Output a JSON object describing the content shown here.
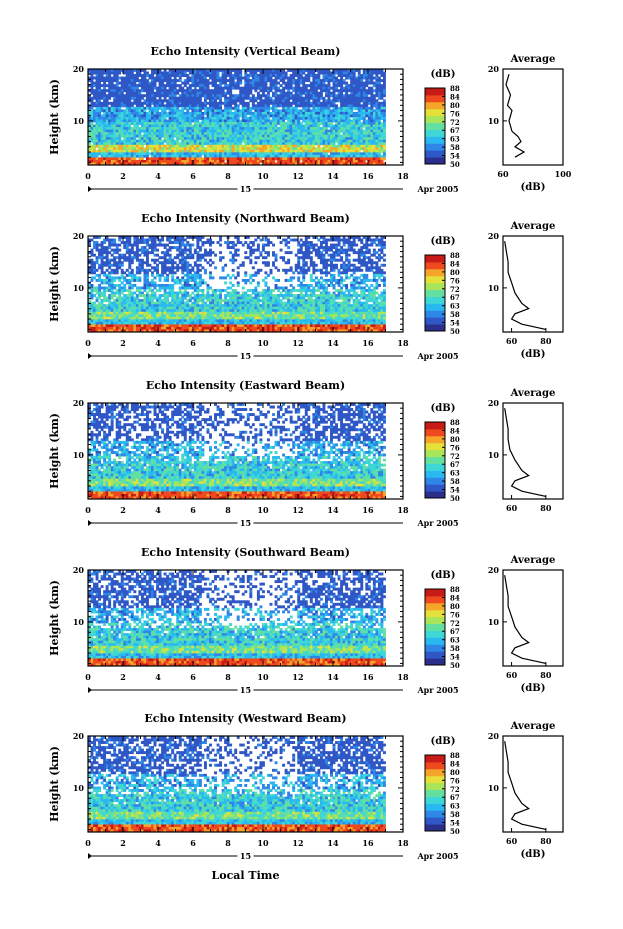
{
  "figure": {
    "xlabel": "Local Time",
    "date_label": "Apr 2005",
    "day_label": "15",
    "colorbar": {
      "unit": "(dB)",
      "ticks": [
        "50",
        "54",
        "58",
        "63",
        "67",
        "72",
        "76",
        "80",
        "84",
        "88"
      ]
    }
  },
  "colors": {
    "background_noise": "#2a2f8c",
    "scale": [
      "#2b2e8a",
      "#2f57c6",
      "#2e86e6",
      "#2ab8f0",
      "#3fd6d6",
      "#63e0a0",
      "#a8e55a",
      "#e6e03a",
      "#f6a52b",
      "#ef4a1f",
      "#c81a16"
    ],
    "empty": "#ffffff"
  },
  "chart_data": [
    {
      "type": "heatmap",
      "title": "Echo Intensity (Vertical Beam)",
      "xlabel": "",
      "ylabel": "Height (km)",
      "xlim": [
        0,
        18
      ],
      "ylim": [
        1.5,
        20
      ],
      "xticks": [
        0,
        2,
        4,
        6,
        8,
        10,
        12,
        14,
        16,
        18
      ],
      "yticks": [
        10,
        20
      ],
      "value_range_dB": [
        50,
        88
      ],
      "average_profile": {
        "title": "Average",
        "xlabel": "(dB)",
        "xlim": [
          60,
          100
        ],
        "xticks": [
          60,
          100
        ],
        "height_km": [
          19,
          17,
          15,
          13,
          12,
          10,
          8,
          7,
          6,
          5,
          4,
          3
        ],
        "dB": [
          64,
          62,
          65,
          63,
          66,
          64,
          66,
          70,
          72,
          68,
          74,
          68
        ]
      }
    },
    {
      "type": "heatmap",
      "title": "Echo Intensity (Northward Beam)",
      "xlabel": "",
      "ylabel": "Height (km)",
      "xlim": [
        0,
        18
      ],
      "ylim": [
        1.5,
        20
      ],
      "xticks": [
        0,
        2,
        4,
        6,
        8,
        10,
        12,
        14,
        16,
        18
      ],
      "yticks": [
        10,
        20
      ],
      "value_range_dB": [
        50,
        88
      ],
      "average_profile": {
        "title": "Average",
        "xlabel": "(dB)",
        "xlim": [
          55,
          90
        ],
        "xticks": [
          60,
          80
        ],
        "height_km": [
          19,
          17,
          15,
          13,
          11,
          9,
          7,
          6,
          5,
          4,
          3,
          2
        ],
        "dB": [
          56,
          57,
          58,
          58,
          60,
          62,
          66,
          70,
          62,
          60,
          66,
          80
        ]
      }
    },
    {
      "type": "heatmap",
      "title": "Echo Intensity (Eastward Beam)",
      "xlabel": "",
      "ylabel": "Height (km)",
      "xlim": [
        0,
        18
      ],
      "ylim": [
        1.5,
        20
      ],
      "xticks": [
        0,
        2,
        4,
        6,
        8,
        10,
        12,
        14,
        16,
        18
      ],
      "yticks": [
        10,
        20
      ],
      "value_range_dB": [
        50,
        88
      ],
      "average_profile": {
        "title": "Average",
        "xlabel": "",
        "xlim": [
          55,
          90
        ],
        "xticks": [
          60,
          80
        ],
        "height_km": [
          19,
          17,
          15,
          13,
          11,
          9,
          7,
          6,
          5,
          4,
          3,
          2
        ],
        "dB": [
          56,
          57,
          58,
          58,
          59,
          62,
          66,
          70,
          62,
          60,
          66,
          80
        ]
      }
    },
    {
      "type": "heatmap",
      "title": "Echo Intensity (Southward Beam)",
      "xlabel": "",
      "ylabel": "Height (km)",
      "xlim": [
        0,
        18
      ],
      "ylim": [
        1.5,
        20
      ],
      "xticks": [
        0,
        2,
        4,
        6,
        8,
        10,
        12,
        14,
        16,
        18
      ],
      "yticks": [
        10,
        20
      ],
      "value_range_dB": [
        50,
        88
      ],
      "average_profile": {
        "title": "Average",
        "xlabel": "(dB)",
        "xlim": [
          55,
          90
        ],
        "xticks": [
          60,
          80
        ],
        "height_km": [
          19,
          17,
          15,
          13,
          11,
          9,
          7,
          6,
          5,
          4,
          3,
          2
        ],
        "dB": [
          56,
          57,
          58,
          58,
          60,
          62,
          66,
          70,
          62,
          60,
          66,
          80
        ]
      }
    },
    {
      "type": "heatmap",
      "title": "Echo Intensity (Westward Beam)",
      "xlabel": "Local Time",
      "ylabel": "Height (km)",
      "xlim": [
        0,
        18
      ],
      "ylim": [
        1.5,
        20
      ],
      "xticks": [
        0,
        2,
        4,
        6,
        8,
        10,
        12,
        14,
        16,
        18
      ],
      "yticks": [
        10,
        20
      ],
      "value_range_dB": [
        50,
        88
      ],
      "average_profile": {
        "title": "Average",
        "xlabel": "(dB)",
        "xlim": [
          55,
          90
        ],
        "xticks": [
          60,
          80
        ],
        "height_km": [
          19,
          17,
          15,
          13,
          11,
          9,
          7,
          6,
          5,
          4,
          3,
          2
        ],
        "dB": [
          56,
          57,
          58,
          58,
          60,
          62,
          66,
          70,
          62,
          60,
          66,
          80
        ]
      }
    }
  ]
}
